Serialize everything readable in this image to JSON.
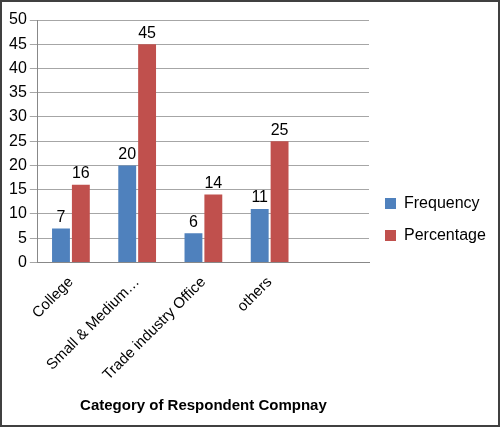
{
  "chart_data": {
    "type": "bar",
    "x_label": "Category of Respondent Compnay",
    "categories": [
      "College",
      "Small & Medium…",
      "Trade industry Office",
      "others",
      null
    ],
    "series": [
      {
        "name": "Frequency",
        "color": "#4f81bd",
        "values": [
          7,
          20,
          6,
          11,
          null
        ]
      },
      {
        "name": "Percentage",
        "color": "#c0504d",
        "values": [
          16,
          45,
          14,
          25,
          null
        ]
      }
    ],
    "ylim": [
      0,
      50
    ],
    "yticks": [
      0,
      5,
      10,
      15,
      20,
      25,
      30,
      35,
      40,
      45,
      50
    ],
    "grid": true,
    "legend": "right",
    "data_labels": true
  }
}
